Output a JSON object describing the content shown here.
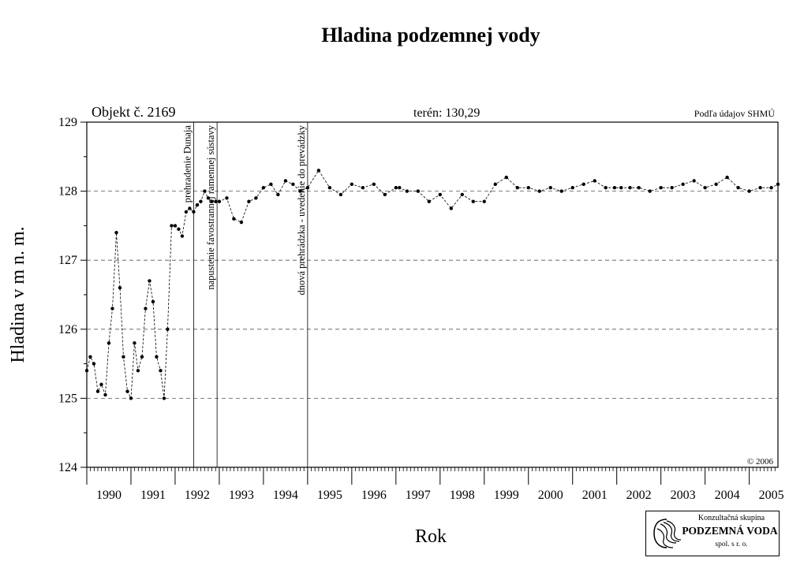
{
  "chart_data": {
    "type": "line",
    "title": "Hladina podzemnej vody",
    "object_label": "Objekt č. 2169",
    "terrain_label": "terén: 130,29",
    "source_label": "Podľa údajov SHMÚ",
    "copyright": "© 2006",
    "xlabel": "Rok",
    "ylabel": "Hladina v m n. m.",
    "xlim": [
      1990.0,
      2005.65
    ],
    "ylim": [
      124,
      129
    ],
    "y_ticks": [
      "124",
      "125",
      "126",
      "127",
      "128",
      "129"
    ],
    "x_tick_labels": [
      "1990",
      "1991",
      "1992",
      "1993",
      "1994",
      "1995",
      "1996",
      "1997",
      "1998",
      "1999",
      "2000",
      "2001",
      "2002",
      "2003",
      "2004",
      "2005"
    ],
    "grid": "horizontal dashed",
    "line_style": "dashed with dot markers",
    "events": [
      {
        "x": 1992.42,
        "label": "prehradenie Dunaja"
      },
      {
        "x": 1992.95,
        "label": "napustenie favostrannej ramennej sústavy"
      },
      {
        "x": 1995.0,
        "label": "dnová prehrádzka - uvedenie do prevádzky"
      }
    ],
    "series": [
      {
        "x": [
          1990.0,
          1990.08,
          1990.16,
          1990.25,
          1990.33,
          1990.42,
          1990.5,
          1990.58,
          1990.67,
          1990.75,
          1990.83,
          1990.92,
          1991.0,
          1991.08,
          1991.16,
          1991.25,
          1991.33,
          1991.42,
          1991.5,
          1991.58,
          1991.67,
          1991.75,
          1991.83,
          1991.92,
          1992.0,
          1992.08,
          1992.16,
          1992.25,
          1992.33,
          1992.42,
          1992.5,
          1992.58,
          1992.67,
          1992.75,
          1992.83,
          1992.92,
          1993.0,
          1993.17,
          1993.33,
          1993.5,
          1993.67,
          1993.83,
          1994.0,
          1994.17,
          1994.33,
          1994.5,
          1994.67,
          1994.83,
          1995.0,
          1995.25,
          1995.5,
          1995.75,
          1996.0,
          1996.25,
          1996.5,
          1996.75,
          1997.0,
          1997.08,
          1997.25,
          1997.5,
          1997.75,
          1998.0,
          1998.25,
          1998.5,
          1998.75,
          1999.0,
          1999.25,
          1999.5,
          1999.75,
          2000.0,
          2000.25,
          2000.5,
          2000.75,
          2001.0,
          2001.25,
          2001.5,
          2001.75,
          2001.95,
          2002.1,
          2002.3,
          2002.5,
          2002.75,
          2003.0,
          2003.25,
          2003.5,
          2003.75,
          2004.0,
          2004.25,
          2004.5,
          2004.75,
          2005.0,
          2005.25,
          2005.5,
          2005.65
        ],
        "y": [
          125.4,
          125.6,
          125.5,
          125.1,
          125.2,
          125.05,
          125.8,
          126.3,
          127.4,
          126.6,
          125.6,
          125.1,
          125.0,
          125.8,
          125.4,
          125.6,
          126.3,
          126.7,
          126.4,
          125.6,
          125.4,
          125.0,
          126.0,
          127.5,
          127.5,
          127.45,
          127.35,
          127.7,
          127.75,
          127.7,
          127.8,
          127.85,
          128.0,
          127.9,
          127.85,
          127.85,
          127.85,
          127.9,
          127.6,
          127.55,
          127.85,
          127.9,
          128.05,
          128.1,
          127.95,
          128.15,
          128.1,
          128.0,
          128.05,
          128.3,
          128.05,
          127.95,
          128.1,
          128.05,
          128.1,
          127.95,
          128.05,
          128.05,
          128.0,
          128.0,
          127.85,
          127.95,
          127.75,
          127.95,
          127.85,
          127.85,
          128.1,
          128.2,
          128.05,
          128.05,
          128.0,
          128.05,
          128.0,
          128.05,
          128.1,
          128.15,
          128.05,
          128.05,
          128.05,
          128.05,
          128.05,
          128.0,
          128.05,
          128.05,
          128.1,
          128.15,
          128.05,
          128.1,
          128.2,
          128.05,
          128.0,
          128.05,
          128.05,
          128.1
        ]
      }
    ]
  },
  "logo": {
    "line1": "Konzultačná skupina",
    "line2": "PODZEMNÁ VODA",
    "line3": "spol. s r. o."
  }
}
